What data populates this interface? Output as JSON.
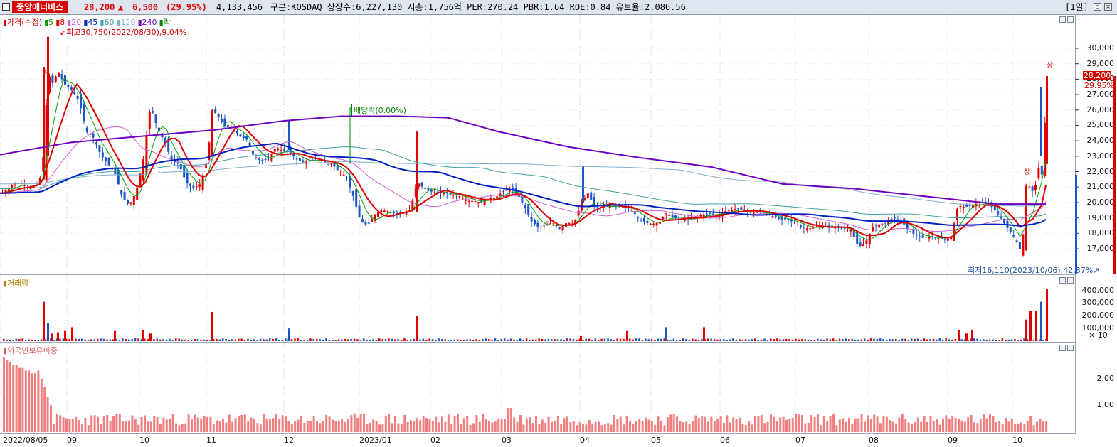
{
  "header": {
    "stock_name": "중앙에너비스",
    "price": "28,200",
    "change_arrow": "▲",
    "change": "6,500",
    "change_pct": "(29.95%)",
    "volume": "4,133,456",
    "info": "구분:KOSDAQ 상장수:6,227,130 시총:1,756억 PER:270.24 PBR:1.64 ROE:0.84 유보율:2,086.56",
    "period": "[1일]"
  },
  "price_panel": {
    "legend": [
      {
        "text": "가격(수정)",
        "color": "#d40000"
      },
      {
        "text": "5",
        "color": "#00a000"
      },
      {
        "text": "8",
        "color": "#e00000"
      },
      {
        "text": "20",
        "color": "#d060d0"
      },
      {
        "text": "45",
        "color": "#0020c0"
      },
      {
        "text": "60",
        "color": "#40a0a0"
      },
      {
        "text": "120",
        "color": "#80b0d0"
      },
      {
        "text": "240",
        "color": "#7000c0"
      },
      {
        "text": "락",
        "color": "#008000"
      }
    ],
    "high_note": "최고30,750(2022/08/30),9.04%",
    "low_note": "최저16,110(2023/10/06),42.87%",
    "dividend_note": "배당락(0.00%)",
    "limit_up_mark": "상",
    "y_labels": [
      "30,000",
      "29,000",
      "28,000",
      "27,000",
      "26,000",
      "25,000",
      "24,000",
      "23,000",
      "22,000",
      "21,000",
      "20,000",
      "19,000",
      "18,000",
      "17,000"
    ],
    "current_price_tag": "28,200",
    "current_pct_tag": "29.95%"
  },
  "volume_panel": {
    "legend": "거래량",
    "y_labels": [
      "400,000",
      "300,000",
      "200,000",
      "100,000"
    ],
    "unit": "× 10"
  },
  "foreign_panel": {
    "legend": "외국인보유비중",
    "y_labels": [
      "2.00",
      "1.00"
    ]
  },
  "x_labels": [
    "2022/08/05",
    "09",
    "10",
    "11",
    "12",
    "2023/01",
    "02",
    "03",
    "04",
    "05",
    "06",
    "07",
    "08",
    "09",
    "10"
  ],
  "chart_data": {
    "type": "candlestick",
    "price_range": [
      16000,
      30800
    ],
    "volume_range": [
      0,
      420000
    ],
    "foreign_ratio_range": [
      0,
      3.0
    ],
    "close_path": [
      [
        0,
        20600
      ],
      [
        10,
        20900
      ],
      [
        20,
        21300
      ],
      [
        30,
        21200
      ],
      [
        40,
        20900
      ],
      [
        50,
        21100
      ],
      [
        55,
        21600
      ],
      [
        60,
        23200
      ],
      [
        66,
        28400
      ],
      [
        72,
        27700
      ],
      [
        80,
        28500
      ],
      [
        90,
        27600
      ],
      [
        100,
        27300
      ],
      [
        110,
        26500
      ],
      [
        120,
        24600
      ],
      [
        130,
        24200
      ],
      [
        140,
        23100
      ],
      [
        150,
        22500
      ],
      [
        160,
        21900
      ],
      [
        170,
        20400
      ],
      [
        180,
        19800
      ],
      [
        190,
        20700
      ],
      [
        200,
        22800
      ],
      [
        210,
        26300
      ],
      [
        220,
        24800
      ],
      [
        230,
        23900
      ],
      [
        240,
        22700
      ],
      [
        250,
        22500
      ],
      [
        260,
        21300
      ],
      [
        270,
        20900
      ],
      [
        280,
        21200
      ],
      [
        290,
        22800
      ],
      [
        297,
        26000
      ],
      [
        305,
        25600
      ],
      [
        315,
        24900
      ],
      [
        325,
        24900
      ],
      [
        335,
        24300
      ],
      [
        345,
        24100
      ],
      [
        355,
        23000
      ],
      [
        365,
        22700
      ],
      [
        375,
        22800
      ],
      [
        385,
        23500
      ],
      [
        395,
        23400
      ],
      [
        405,
        23300
      ],
      [
        415,
        22800
      ],
      [
        425,
        22600
      ],
      [
        435,
        22700
      ],
      [
        445,
        22900
      ],
      [
        455,
        22600
      ],
      [
        465,
        22500
      ],
      [
        475,
        22000
      ],
      [
        485,
        21700
      ],
      [
        495,
        20400
      ],
      [
        505,
        18800
      ],
      [
        515,
        18500
      ],
      [
        525,
        19200
      ],
      [
        535,
        19500
      ],
      [
        545,
        19400
      ],
      [
        555,
        19300
      ],
      [
        565,
        19300
      ],
      [
        575,
        19500
      ],
      [
        585,
        21300
      ],
      [
        595,
        20900
      ],
      [
        605,
        20700
      ],
      [
        615,
        20600
      ],
      [
        625,
        20600
      ],
      [
        635,
        20500
      ],
      [
        645,
        20400
      ],
      [
        655,
        20100
      ],
      [
        665,
        20100
      ],
      [
        675,
        20000
      ],
      [
        685,
        20300
      ],
      [
        695,
        20300
      ],
      [
        705,
        20700
      ],
      [
        715,
        20900
      ],
      [
        725,
        20600
      ],
      [
        735,
        19800
      ],
      [
        745,
        18800
      ],
      [
        755,
        18400
      ],
      [
        765,
        18500
      ],
      [
        775,
        18700
      ],
      [
        785,
        18300
      ],
      [
        795,
        18700
      ],
      [
        805,
        18600
      ],
      [
        815,
        19900
      ],
      [
        825,
        20600
      ],
      [
        835,
        19600
      ],
      [
        845,
        19700
      ],
      [
        855,
        19800
      ],
      [
        865,
        19800
      ],
      [
        875,
        19700
      ],
      [
        885,
        19600
      ],
      [
        895,
        19000
      ],
      [
        905,
        18700
      ],
      [
        915,
        18600
      ],
      [
        925,
        18700
      ],
      [
        935,
        19300
      ],
      [
        945,
        19000
      ],
      [
        955,
        18900
      ],
      [
        965,
        18900
      ],
      [
        975,
        19000
      ],
      [
        985,
        19200
      ],
      [
        995,
        19300
      ],
      [
        1005,
        19100
      ],
      [
        1015,
        19400
      ],
      [
        1025,
        19500
      ],
      [
        1035,
        19600
      ],
      [
        1045,
        19500
      ],
      [
        1055,
        19300
      ],
      [
        1065,
        19400
      ],
      [
        1075,
        19300
      ],
      [
        1085,
        19100
      ],
      [
        1095,
        18900
      ],
      [
        1105,
        18900
      ],
      [
        1115,
        18700
      ],
      [
        1125,
        18400
      ],
      [
        1135,
        18300
      ],
      [
        1145,
        18400
      ],
      [
        1155,
        18500
      ],
      [
        1165,
        18400
      ],
      [
        1175,
        18400
      ],
      [
        1185,
        18300
      ],
      [
        1195,
        18200
      ],
      [
        1205,
        17100
      ],
      [
        1215,
        17400
      ],
      [
        1225,
        18400
      ],
      [
        1235,
        18600
      ],
      [
        1245,
        18700
      ],
      [
        1255,
        19000
      ],
      [
        1265,
        18800
      ],
      [
        1275,
        18200
      ],
      [
        1285,
        17900
      ],
      [
        1295,
        17700
      ],
      [
        1305,
        17800
      ],
      [
        1315,
        17700
      ],
      [
        1325,
        17600
      ],
      [
        1335,
        17700
      ],
      [
        1345,
        19800
      ],
      [
        1355,
        19700
      ],
      [
        1365,
        19800
      ],
      [
        1375,
        20000
      ],
      [
        1385,
        20000
      ],
      [
        1395,
        19600
      ],
      [
        1405,
        19000
      ],
      [
        1415,
        18300
      ],
      [
        1425,
        17700
      ],
      [
        1435,
        16700
      ],
      [
        1440,
        21100
      ],
      [
        1447,
        21000
      ],
      [
        1452,
        20500
      ],
      [
        1458,
        22300
      ],
      [
        1464,
        21700
      ],
      [
        1470,
        28200
      ]
    ],
    "volume_spikes": [
      [
        60,
        310000
      ],
      [
        66,
        140000
      ],
      [
        72,
        60000
      ],
      [
        80,
        70000
      ],
      [
        90,
        80000
      ],
      [
        100,
        110000
      ],
      [
        160,
        80000
      ],
      [
        200,
        90000
      ],
      [
        210,
        60000
      ],
      [
        297,
        230000
      ],
      [
        405,
        100000
      ],
      [
        585,
        200000
      ],
      [
        815,
        40000
      ],
      [
        880,
        80000
      ],
      [
        935,
        110000
      ],
      [
        988,
        110000
      ],
      [
        1347,
        90000
      ],
      [
        1357,
        60000
      ],
      [
        1365,
        90000
      ],
      [
        1441,
        170000
      ],
      [
        1447,
        240000
      ],
      [
        1455,
        240000
      ],
      [
        1462,
        310000
      ],
      [
        1470,
        410000
      ]
    ],
    "foreign_ratio_start": [
      2.8,
      2.7,
      2.6,
      2.5,
      2.5,
      2.4,
      2.4,
      2.3,
      2.3,
      2.2,
      2.2,
      2.3,
      2.0,
      1.7,
      1.3,
      1.0
    ]
  }
}
